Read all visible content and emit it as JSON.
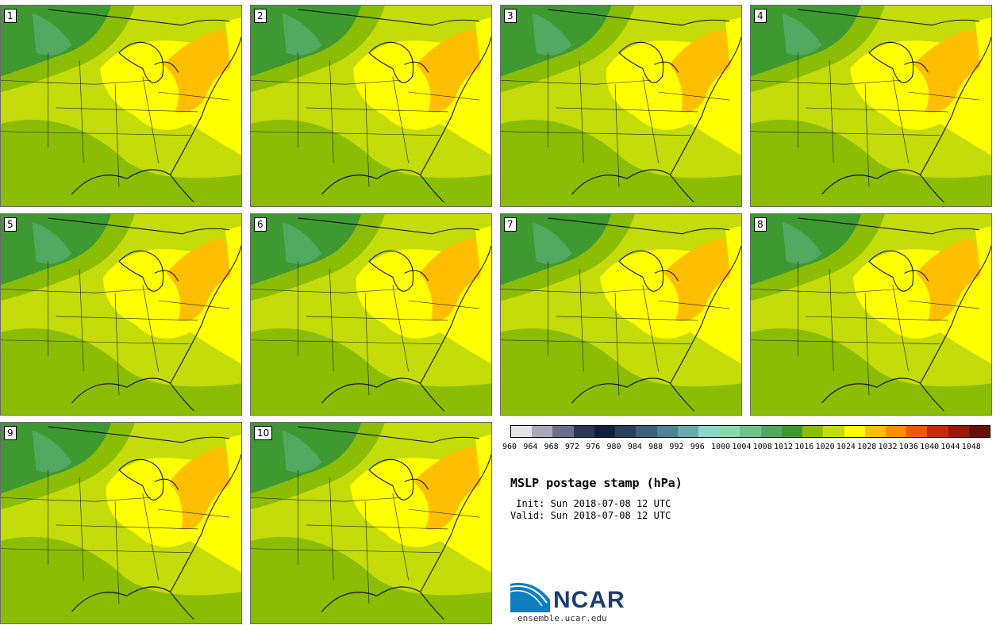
{
  "panels": [
    {
      "label": "1"
    },
    {
      "label": "2"
    },
    {
      "label": "3"
    },
    {
      "label": "4"
    },
    {
      "label": "5"
    },
    {
      "label": "6"
    },
    {
      "label": "7"
    },
    {
      "label": "8"
    },
    {
      "label": "9"
    },
    {
      "label": "10"
    }
  ],
  "colorbar": {
    "ticks": [
      "960",
      "964",
      "968",
      "972",
      "976",
      "980",
      "984",
      "988",
      "992",
      "996",
      "1000",
      "1004",
      "1008",
      "1012",
      "1016",
      "1020",
      "1024",
      "1028",
      "1032",
      "1036",
      "1040",
      "1044",
      "1048"
    ],
    "colors": [
      "#e3e3e8",
      "#a9a9ba",
      "#6a6e8a",
      "#2c3654",
      "#171e3a",
      "#29405c",
      "#3f6078",
      "#4e8294",
      "#6aa8ac",
      "#8ad8c8",
      "#88d9b2",
      "#6cc48a",
      "#52a860",
      "#3e9a30",
      "#8bbd05",
      "#c3dc0a",
      "#ffff00",
      "#ffbf00",
      "#ff8c00",
      "#ea5a0a",
      "#c72a0a",
      "#9a1a0a",
      "#641208"
    ]
  },
  "title": "MSLP postage stamp (hPa)",
  "init": " Init: Sun 2018-07-08 12 UTC",
  "valid": "Valid: Sun 2018-07-08 12 UTC",
  "logo": {
    "text": "NCAR",
    "site": "ensemble.ucar.edu"
  }
}
